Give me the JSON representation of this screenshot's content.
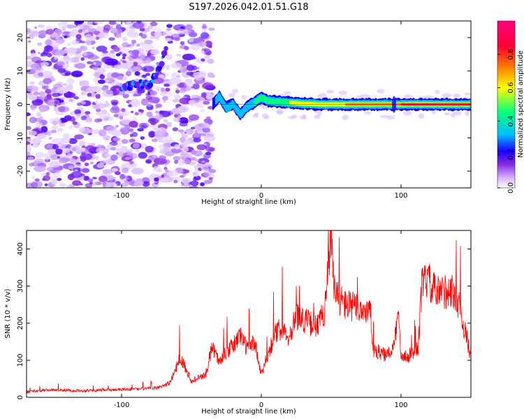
{
  "title": "S197.2026.042.01.51.G18",
  "chart_data": [
    {
      "type": "heatmap",
      "name": "spectrogram",
      "xlabel": "Height of straight line (km)",
      "ylabel": "Frequency (Hz)",
      "xlim": [
        -168,
        150
      ],
      "ylim": [
        -25,
        25
      ],
      "xticks": [
        -100,
        0,
        100
      ],
      "yticks": [
        -20,
        -10,
        0,
        10,
        20
      ],
      "grid": false,
      "colorbar": {
        "label": "Normalized spectral amplitude",
        "range": [
          0,
          1
        ],
        "ticks": [
          0.0,
          0.2,
          0.4,
          0.6,
          0.8
        ],
        "tick_labels": [
          "0.0",
          "0.2",
          "0.4",
          "0.6",
          "0.8"
        ],
        "colormap": [
          "#ffffff",
          "#d9b3ff",
          "#8a2be2",
          "#1a00ff",
          "#00bfff",
          "#00ff80",
          "#ffff00",
          "#ff8000",
          "#ff0033",
          "#ff0080"
        ]
      },
      "ridge": {
        "description_points_x": [
          -100,
          -90,
          -80,
          -75,
          -70,
          -68,
          -35,
          -30,
          -25,
          -20,
          -15,
          -12,
          -8,
          -5,
          0,
          5,
          20,
          40,
          60,
          80,
          95,
          100,
          120,
          140,
          150
        ],
        "description_points_y": [
          5,
          6,
          6,
          9,
          14,
          17,
          0,
          2.5,
          -1,
          0,
          -3,
          -1.5,
          0,
          0.5,
          2,
          1,
          0.5,
          0,
          0,
          0,
          0,
          0,
          0,
          0,
          0
        ]
      }
    },
    {
      "type": "line",
      "name": "snr",
      "xlabel": "Height of straight line (km)",
      "ylabel": "SNR (10 * v/v)",
      "xlim": [
        -168,
        150
      ],
      "ylim": [
        0,
        450
      ],
      "xticks": [
        -100,
        0,
        100
      ],
      "yticks": [
        0,
        100,
        200,
        300,
        400
      ],
      "grid": false,
      "color": "#ff0000",
      "series": [
        {
          "name": "SNR",
          "x": [
            -168,
            -150,
            -130,
            -110,
            -90,
            -75,
            -65,
            -58,
            -50,
            -40,
            -35,
            -30,
            -25,
            -20,
            -15,
            -10,
            -5,
            0,
            5,
            10,
            15,
            20,
            25,
            30,
            35,
            40,
            45,
            48,
            50,
            52,
            55,
            60,
            70,
            78,
            80,
            85,
            90,
            95,
            98,
            100,
            105,
            112,
            115,
            118,
            125,
            135,
            140,
            145,
            150
          ],
          "y": [
            15,
            20,
            18,
            20,
            22,
            25,
            40,
            110,
            45,
            60,
            140,
            95,
            120,
            140,
            170,
            130,
            150,
            60,
            120,
            170,
            190,
            165,
            220,
            210,
            200,
            190,
            230,
            370,
            440,
            290,
            270,
            250,
            240,
            230,
            130,
            120,
            110,
            140,
            230,
            120,
            110,
            130,
            300,
            320,
            280,
            290,
            270,
            190,
            110
          ]
        }
      ]
    }
  ]
}
